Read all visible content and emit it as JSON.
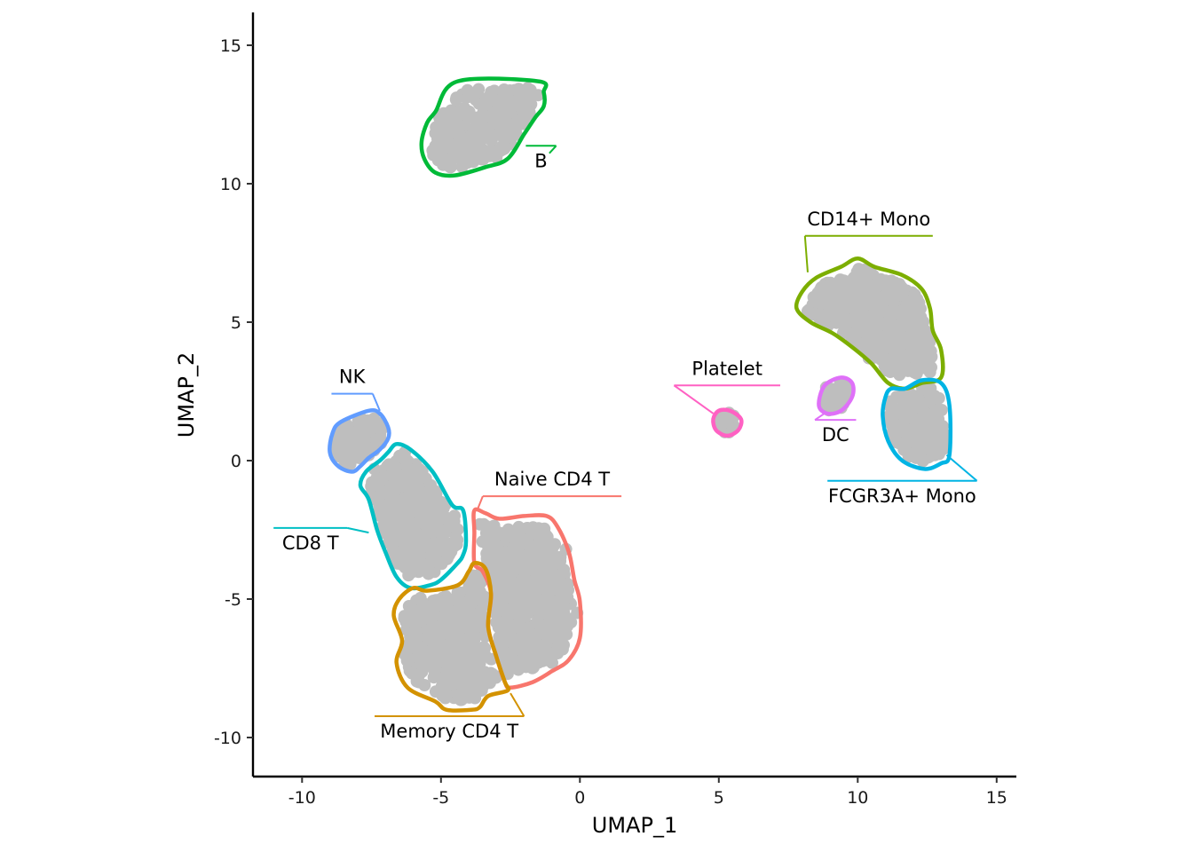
{
  "chart_data": {
    "type": "scatter",
    "subtype": "umap-cluster-hull",
    "title": "",
    "xlabel": "UMAP_1",
    "ylabel": "UMAP_2",
    "xlim": [
      -11.8,
      15.7
    ],
    "ylim": [
      -11.4,
      16.2
    ],
    "x_ticks": [
      -10,
      -5,
      0,
      5,
      10,
      15
    ],
    "y_ticks": [
      -10,
      -5,
      0,
      5,
      10,
      15
    ],
    "x_tick_labels": [
      "-10",
      "-5",
      "0",
      "5",
      "10",
      "15"
    ],
    "y_tick_labels": [
      "-10",
      "-5",
      "0",
      "5",
      "10",
      "15"
    ],
    "grid": false,
    "legend": "none",
    "point_color": "#bebebe",
    "clusters": [
      {
        "name": "B",
        "color": "#00BA38",
        "hull": [
          [
            -4.4,
            13.7
          ],
          [
            -1.5,
            13.7
          ],
          [
            -1.3,
            13.3
          ],
          [
            -1.3,
            12.8
          ],
          [
            -1.6,
            12.4
          ],
          [
            -2.0,
            11.8
          ],
          [
            -2.6,
            10.9
          ],
          [
            -3.4,
            10.6
          ],
          [
            -4.5,
            10.3
          ],
          [
            -5.2,
            10.4
          ],
          [
            -5.6,
            10.9
          ],
          [
            -5.7,
            11.5
          ],
          [
            -5.5,
            12.2
          ],
          [
            -5.2,
            12.6
          ]
        ],
        "points_region": [
          [
            -5.3,
            11.2
          ],
          [
            -4.0,
            10.9
          ],
          [
            -2.3,
            12.2
          ],
          [
            -1.5,
            13.2
          ],
          [
            -3.8,
            13.2
          ],
          [
            -4.8,
            12.2
          ],
          [
            -3.2,
            11.8
          ],
          [
            -2.5,
            13.0
          ],
          [
            -4.2,
            11.6
          ],
          [
            -3.5,
            12.5
          ]
        ],
        "label_anchor": [
          -1.1,
          11.1
        ],
        "label_pos": [
          -1.4,
          10.6
        ]
      },
      {
        "name": "CD14+ Mono",
        "color": "#7CAE00",
        "hull": [
          [
            7.8,
            5.5
          ],
          [
            8.0,
            6.1
          ],
          [
            8.5,
            6.6
          ],
          [
            9.4,
            7.0
          ],
          [
            10.0,
            7.3
          ],
          [
            10.6,
            7.0
          ],
          [
            11.6,
            6.7
          ],
          [
            12.3,
            6.2
          ],
          [
            12.6,
            5.5
          ],
          [
            12.7,
            4.7
          ],
          [
            13.0,
            4.0
          ],
          [
            13.0,
            3.0
          ],
          [
            12.3,
            2.8
          ],
          [
            11.7,
            2.6
          ],
          [
            11.1,
            2.8
          ],
          [
            10.5,
            3.5
          ],
          [
            9.8,
            4.1
          ],
          [
            9.1,
            4.6
          ],
          [
            8.3,
            5.0
          ]
        ],
        "points_region": [
          [
            8.2,
            5.4
          ],
          [
            9.5,
            6.5
          ],
          [
            11.0,
            6.5
          ],
          [
            12.2,
            5.3
          ],
          [
            12.6,
            3.2
          ],
          [
            11.5,
            3.1
          ],
          [
            10.4,
            3.7
          ],
          [
            9.6,
            4.7
          ],
          [
            10.8,
            5.0
          ],
          [
            11.6,
            4.2
          ],
          [
            10.2,
            6.0
          ]
        ],
        "label_anchor": [
          8.2,
          6.8
        ],
        "label_pos": [
          10.4,
          8.5
        ]
      },
      {
        "name": "FCGR3A+ Mono",
        "color": "#00B4E4",
        "hull": [
          [
            11.2,
            2.6
          ],
          [
            11.7,
            2.6
          ],
          [
            12.3,
            2.9
          ],
          [
            13.0,
            2.8
          ],
          [
            13.3,
            2.0
          ],
          [
            13.3,
            0.2
          ],
          [
            13.0,
            -0.1
          ],
          [
            12.4,
            -0.3
          ],
          [
            11.6,
            0.0
          ],
          [
            11.1,
            0.7
          ],
          [
            10.9,
            1.6
          ],
          [
            11.0,
            2.3
          ]
        ],
        "points_region": [
          [
            11.4,
            2.3
          ],
          [
            12.6,
            2.4
          ],
          [
            12.9,
            1.5
          ],
          [
            12.9,
            0.4
          ],
          [
            12.1,
            0.1
          ],
          [
            11.4,
            1.0
          ],
          [
            12.0,
            1.5
          ]
        ],
        "label_anchor": [
          13.2,
          0.2
        ],
        "label_pos": [
          11.6,
          -1.5
        ]
      },
      {
        "name": "DC",
        "color": "#DF70F8",
        "hull": [
          [
            8.6,
            2.0
          ],
          [
            8.8,
            2.7
          ],
          [
            9.4,
            3.0
          ],
          [
            9.8,
            2.8
          ],
          [
            9.8,
            2.3
          ],
          [
            9.4,
            1.8
          ],
          [
            8.9,
            1.7
          ]
        ],
        "points_region": [
          [
            8.9,
            2.0
          ],
          [
            9.6,
            2.7
          ],
          [
            9.2,
            2.3
          ]
        ],
        "label_anchor": [
          8.8,
          1.7
        ],
        "label_pos": [
          9.2,
          0.7
        ]
      },
      {
        "name": "Platelet",
        "color": "#FF61C3",
        "hull": [
          [
            4.8,
            1.5
          ],
          [
            5.0,
            1.8
          ],
          [
            5.4,
            1.8
          ],
          [
            5.8,
            1.5
          ],
          [
            5.7,
            1.1
          ],
          [
            5.3,
            0.9
          ],
          [
            4.9,
            1.1
          ]
        ],
        "points_region": [
          [
            5.3,
            1.4
          ]
        ],
        "label_anchor": [
          4.8,
          1.7
        ],
        "label_pos": [
          5.3,
          3.1
        ]
      },
      {
        "name": "NK",
        "color": "#619CFF",
        "hull": [
          [
            -8.9,
            1.0
          ],
          [
            -8.6,
            1.4
          ],
          [
            -7.6,
            1.8
          ],
          [
            -7.2,
            1.7
          ],
          [
            -6.9,
            1.2
          ],
          [
            -6.9,
            0.8
          ],
          [
            -7.2,
            0.4
          ],
          [
            -7.6,
            0.1
          ],
          [
            -7.9,
            -0.2
          ],
          [
            -8.2,
            -0.4
          ],
          [
            -8.7,
            -0.2
          ],
          [
            -9.0,
            0.3
          ]
        ],
        "points_region": [
          [
            -8.6,
            0.9
          ],
          [
            -7.2,
            1.3
          ],
          [
            -7.6,
            0.2
          ],
          [
            -8.2,
            0.5
          ],
          [
            -7.8,
            1.1
          ]
        ],
        "label_anchor": [
          -7.2,
          1.8
        ],
        "label_pos": [
          -8.2,
          2.8
        ]
      },
      {
        "name": "CD8 T",
        "color": "#00BFC4",
        "hull": [
          [
            -7.7,
            -0.4
          ],
          [
            -7.2,
            0.0
          ],
          [
            -6.9,
            0.3
          ],
          [
            -6.6,
            0.6
          ],
          [
            -6.1,
            0.4
          ],
          [
            -5.3,
            -0.4
          ],
          [
            -4.6,
            -1.6
          ],
          [
            -4.2,
            -1.8
          ],
          [
            -4.1,
            -2.9
          ],
          [
            -4.2,
            -3.4
          ],
          [
            -4.4,
            -3.7
          ],
          [
            -5.0,
            -4.3
          ],
          [
            -5.4,
            -4.5
          ],
          [
            -6.1,
            -4.6
          ],
          [
            -6.6,
            -4.2
          ],
          [
            -7.0,
            -3.3
          ],
          [
            -7.3,
            -2.5
          ],
          [
            -7.6,
            -1.4
          ],
          [
            -7.9,
            -0.9
          ]
        ],
        "points_region": [
          [
            -7.4,
            -0.3
          ],
          [
            -6.3,
            0.3
          ],
          [
            -5.0,
            -1.5
          ],
          [
            -4.5,
            -2.4
          ],
          [
            -5.4,
            -3.7
          ],
          [
            -6.4,
            -3.3
          ],
          [
            -6.8,
            -1.8
          ],
          [
            -5.8,
            -1.0
          ],
          [
            -5.9,
            -2.6
          ]
        ],
        "label_anchor": [
          -7.6,
          -2.6
        ],
        "label_pos": [
          -9.7,
          -3.2
        ]
      },
      {
        "name": "Naive CD4 T",
        "color": "#F8766D",
        "hull": [
          [
            -3.8,
            -1.8
          ],
          [
            -3.4,
            -1.9
          ],
          [
            -2.9,
            -2.1
          ],
          [
            -2.0,
            -2.0
          ],
          [
            -1.2,
            -2.0
          ],
          [
            -0.8,
            -2.4
          ],
          [
            -0.4,
            -3.3
          ],
          [
            -0.2,
            -4.3
          ],
          [
            0.0,
            -5.1
          ],
          [
            0.0,
            -6.4
          ],
          [
            -0.4,
            -7.2
          ],
          [
            -1.0,
            -7.6
          ],
          [
            -1.7,
            -8.0
          ],
          [
            -2.5,
            -8.2
          ],
          [
            -2.7,
            -8.0
          ],
          [
            -3.0,
            -7.1
          ],
          [
            -3.3,
            -6.0
          ],
          [
            -3.2,
            -4.8
          ],
          [
            -3.5,
            -4.0
          ],
          [
            -3.8,
            -3.7
          ],
          [
            -3.8,
            -2.6
          ]
        ],
        "points_region": [
          [
            -3.6,
            -2.3
          ],
          [
            -2.2,
            -2.4
          ],
          [
            -0.5,
            -3.2
          ],
          [
            -0.1,
            -5.5
          ],
          [
            -1.0,
            -7.3
          ],
          [
            -2.6,
            -7.7
          ],
          [
            -2.9,
            -6.0
          ],
          [
            -2.9,
            -4.3
          ],
          [
            -1.5,
            -5.0
          ],
          [
            -1.8,
            -3.4
          ],
          [
            -1.0,
            -6.0
          ]
        ],
        "label_anchor": [
          -3.7,
          -1.8
        ],
        "label_pos": [
          -1.0,
          -0.9
        ]
      },
      {
        "name": "Memory CD4 T",
        "color": "#D39200",
        "hull": [
          [
            -4.4,
            -4.5
          ],
          [
            -4.0,
            -4.0
          ],
          [
            -3.8,
            -3.7
          ],
          [
            -3.4,
            -3.9
          ],
          [
            -3.2,
            -4.8
          ],
          [
            -3.3,
            -6.0
          ],
          [
            -3.0,
            -7.1
          ],
          [
            -2.7,
            -8.0
          ],
          [
            -2.6,
            -8.3
          ],
          [
            -3.3,
            -8.5
          ],
          [
            -3.6,
            -8.9
          ],
          [
            -3.9,
            -9.0
          ],
          [
            -4.8,
            -9.0
          ],
          [
            -5.2,
            -8.7
          ],
          [
            -6.2,
            -8.2
          ],
          [
            -6.6,
            -7.3
          ],
          [
            -6.4,
            -6.5
          ],
          [
            -6.7,
            -5.6
          ],
          [
            -6.5,
            -5.0
          ],
          [
            -6.0,
            -4.6
          ],
          [
            -5.5,
            -4.7
          ]
        ],
        "points_region": [
          [
            -4.4,
            -4.8
          ],
          [
            -3.6,
            -4.1
          ],
          [
            -3.5,
            -6.0
          ],
          [
            -3.0,
            -7.8
          ],
          [
            -4.3,
            -8.5
          ],
          [
            -5.8,
            -8.0
          ],
          [
            -6.3,
            -7.0
          ],
          [
            -6.0,
            -5.4
          ],
          [
            -4.8,
            -6.2
          ],
          [
            -4.4,
            -7.4
          ]
        ],
        "label_anchor": [
          -2.5,
          -8.4
        ],
        "label_pos": [
          -4.7,
          -10.0
        ]
      }
    ]
  }
}
